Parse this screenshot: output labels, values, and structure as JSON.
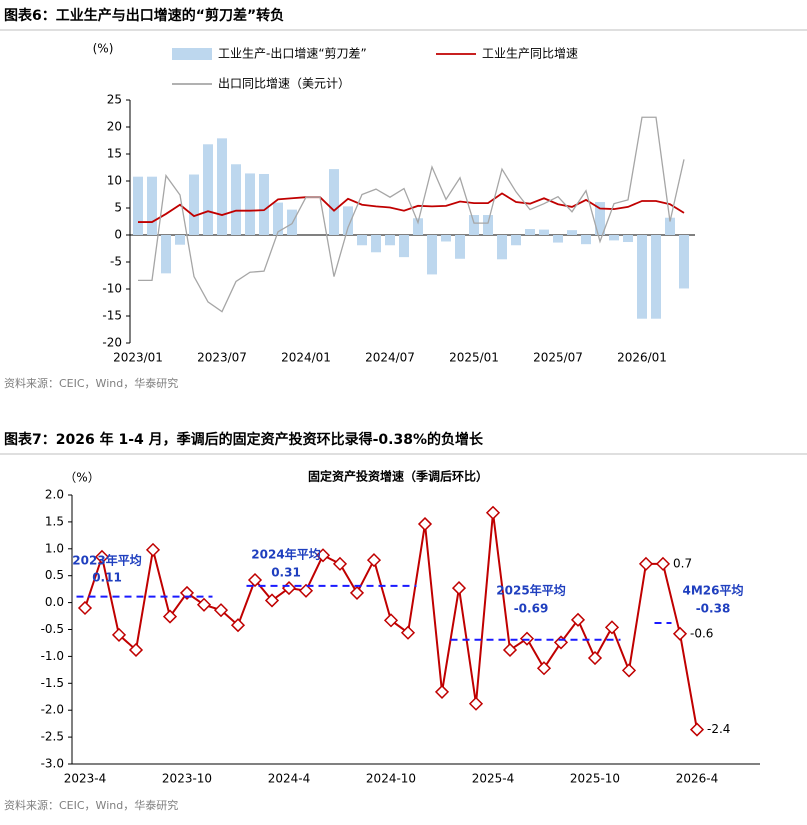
{
  "chart_data": [
    {
      "type": "combo",
      "title": "图表6：工业生产与出口增速的“剪刀差”转负",
      "source": "资料来源：CEIC，Wind，华泰研究",
      "y_label": "(%)",
      "categories": [
        "2023/01",
        null,
        null,
        null,
        null,
        null,
        "2023/07",
        null,
        null,
        null,
        null,
        null,
        "2024/01",
        null,
        null,
        null,
        null,
        null,
        "2024/07",
        null,
        null,
        null,
        null,
        null,
        "2025/01",
        null,
        null,
        null,
        null,
        null,
        "2025/07",
        null,
        null,
        null,
        null,
        null,
        "2026/01",
        null,
        null,
        null
      ],
      "ylim": [
        -20,
        25
      ],
      "yticks": [
        -20,
        -15,
        -10,
        -5,
        0,
        5,
        10,
        15,
        20,
        25
      ],
      "series": [
        {
          "name": "工业生产-出口增速“剪刀差”",
          "type": "bar",
          "color": "#bdd7ee",
          "values": [
            10.8,
            10.8,
            -7.1,
            -1.8,
            11.2,
            16.8,
            17.9,
            13.1,
            11.4,
            11.3,
            6,
            4.7,
            0,
            0,
            12.2,
            5.3,
            -1.9,
            -3.2,
            -1.9,
            -4.1,
            3.1,
            -7.3,
            -1.2,
            -4.4,
            3.7,
            3.7,
            -4.5,
            -1.9,
            1.1,
            1,
            -1.4,
            0.9,
            -1.7,
            6.1,
            -1,
            -1.3,
            -15.5,
            -15.5,
            3.2,
            -9.9
          ]
        },
        {
          "name": "工业生产同比增速",
          "type": "line",
          "color": "#c00000",
          "values": [
            2.4,
            2.4,
            3.9,
            5.6,
            3.5,
            4.4,
            3.7,
            4.5,
            4.5,
            4.6,
            6.6,
            6.8,
            7,
            7,
            4.5,
            6.7,
            5.6,
            5.3,
            5.1,
            4.5,
            5.4,
            5.3,
            5.4,
            6.2,
            5.9,
            5.9,
            7.7,
            6.1,
            5.8,
            6.8,
            5.7,
            5.2,
            6.5,
            4.9,
            4.8,
            5.2,
            6.3,
            6.3,
            5.7,
            4.1
          ]
        },
        {
          "name": "出口同比增速（美元计）",
          "type": "line",
          "color": "#a6a6a6",
          "values": [
            -8.4,
            -8.4,
            11,
            7.4,
            -7.7,
            -12.4,
            -14.2,
            -8.6,
            -6.9,
            -6.7,
            0.6,
            2.1,
            7,
            7,
            -7.7,
            1.4,
            7.5,
            8.5,
            7,
            8.6,
            2.3,
            12.6,
            6.6,
            10.6,
            2.2,
            2.2,
            12.2,
            8,
            4.7,
            5.8,
            7.1,
            4.3,
            8.2,
            -1.2,
            5.8,
            6.5,
            21.8,
            21.8,
            2.5,
            14
          ]
        }
      ]
    },
    {
      "type": "line",
      "title": "图表7：2026 年 1-4 月，季调后的固定资产投资环比录得-0.38%的负增长",
      "subtitle": "固定资产投资增速（季调后环比）",
      "source": "资料来源：CEIC，Wind，华泰研究",
      "y_label": "（%）",
      "categories": [
        "2023-4",
        null,
        null,
        null,
        null,
        null,
        "2023-10",
        null,
        null,
        null,
        null,
        null,
        "2024-4",
        null,
        null,
        null,
        null,
        null,
        "2024-10",
        null,
        null,
        null,
        null,
        null,
        "2025-4",
        null,
        null,
        null,
        null,
        null,
        "2025-10",
        null,
        null,
        null,
        null,
        null,
        "2026-4"
      ],
      "ylim": [
        -3,
        2
      ],
      "yticks": [
        {
          "value": -3,
          "label": "-3.0"
        },
        -2.5,
        {
          "value": -2,
          "label": "-2.0"
        },
        -1.5,
        {
          "value": -1,
          "label": "-1.0"
        },
        -0.5,
        {
          "value": 0,
          "label": "0.0"
        },
        0.5,
        {
          "value": 1,
          "label": "1.0"
        },
        1.5,
        {
          "value": 2,
          "label": "2.0"
        }
      ],
      "series": [
        {
          "name": "固定资产投资增速（季调后环比）",
          "color": "#c00000",
          "values": [
            -0.1,
            0.85,
            -0.6,
            -0.88,
            0.98,
            -0.26,
            0.18,
            -0.04,
            -0.14,
            -0.42,
            0.42,
            0.04,
            0.27,
            0.22,
            0.88,
            0.72,
            0.18,
            0.79,
            -0.33,
            -0.56,
            1.46,
            -1.66,
            0.27,
            -1.88,
            1.67,
            -0.88,
            -0.67,
            -1.22,
            -0.74,
            -0.32,
            -1.03,
            -0.46,
            -1.26,
            0.72,
            0.72,
            -0.58,
            -2.36
          ],
          "value_labels": [
            null,
            null,
            null,
            null,
            null,
            null,
            null,
            null,
            null,
            null,
            null,
            null,
            null,
            null,
            null,
            null,
            null,
            null,
            null,
            null,
            null,
            null,
            null,
            null,
            null,
            null,
            null,
            null,
            null,
            null,
            null,
            null,
            null,
            null,
            "0.7",
            "-0.6",
            "-2.4"
          ]
        }
      ],
      "averages": [
        {
          "label": "2023年平均",
          "value": 0.11
        },
        {
          "label": "2024年平均",
          "value": 0.31
        },
        {
          "label": "2025年平均",
          "value": -0.69
        },
        {
          "label": "4M26平均",
          "value": -0.38
        }
      ]
    }
  ]
}
